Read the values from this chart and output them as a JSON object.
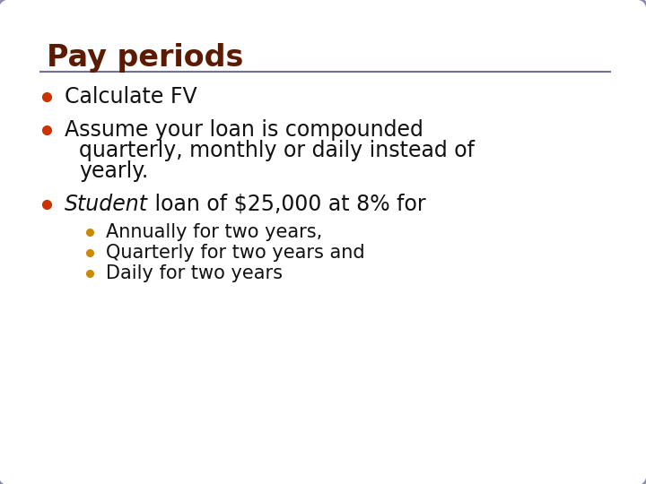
{
  "title": "Pay periods",
  "title_color": "#5C1A00",
  "title_fontsize": 24,
  "line_color": "#7070A0",
  "background_color": "#FFFFFF",
  "border_color": "#8888AA",
  "bullet_color_main": "#CC3300",
  "bullet_color_sub": "#CC8800",
  "body_color": "#111111",
  "bullet1": "Calculate FV",
  "bullet2_line1": "Assume your loan is compounded",
  "bullet2_line2": "quarterly, monthly or daily instead of",
  "bullet2_line3": "yearly.",
  "bullet3_italic": "Student",
  "bullet3_rest": " loan of $25,000 at 8% for",
  "sub_bullet1": "Annually for two years,",
  "sub_bullet2": "Quarterly for two years and",
  "sub_bullet3": "Daily for two years",
  "body_fontsize": 17,
  "sub_fontsize": 15
}
